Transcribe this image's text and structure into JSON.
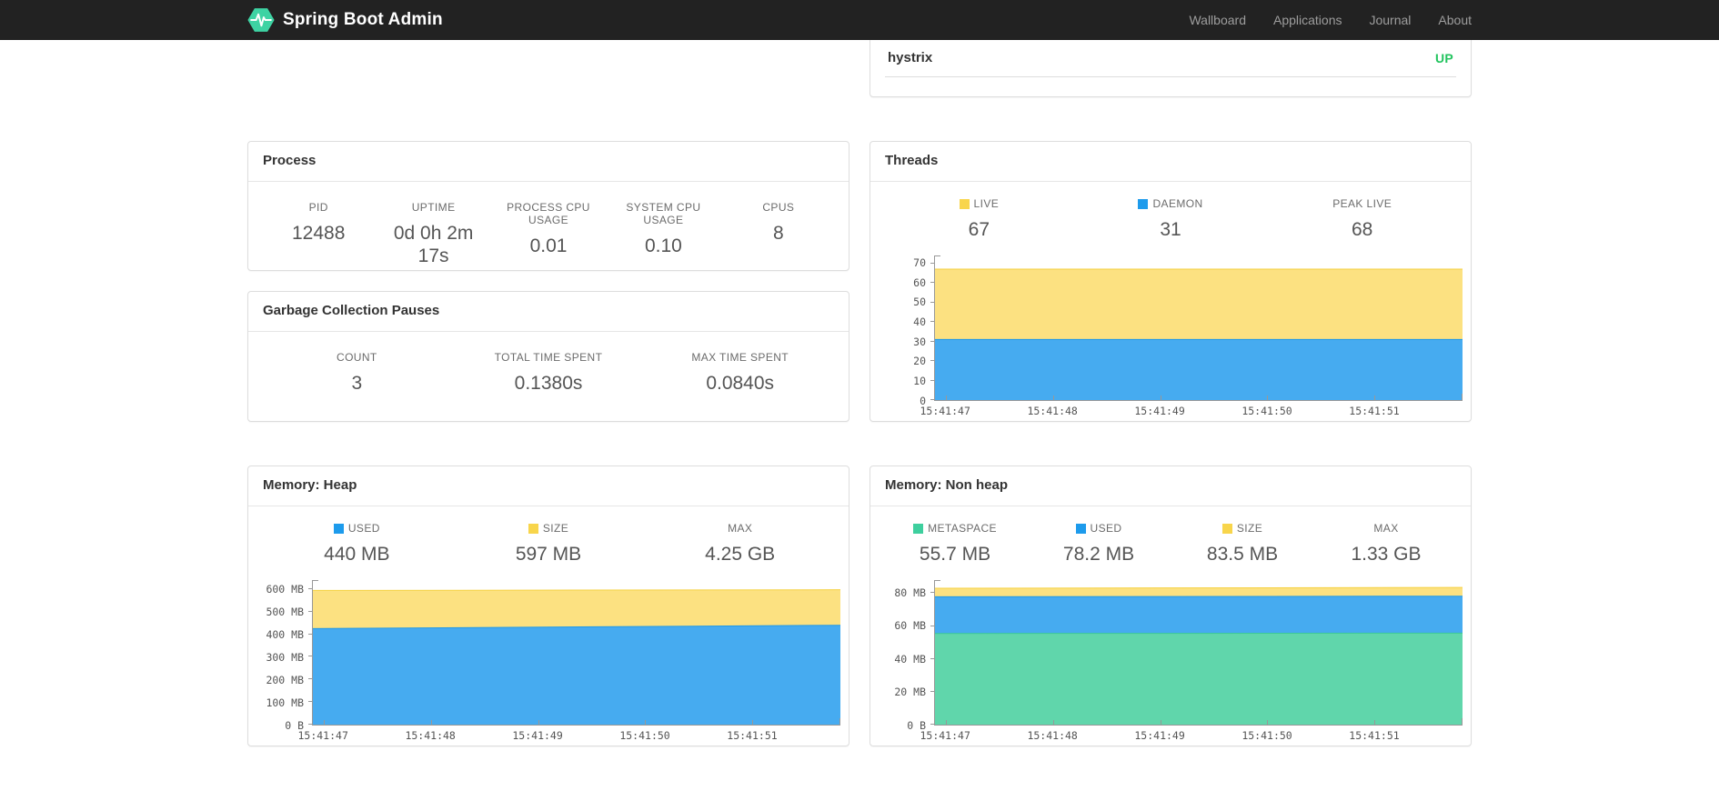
{
  "navbar": {
    "brand": "Spring Boot Admin",
    "links": [
      {
        "label": "Wallboard"
      },
      {
        "label": "Applications"
      },
      {
        "label": "Journal"
      },
      {
        "label": "About"
      }
    ]
  },
  "colors": {
    "brand_green": "#3ed3a3",
    "status_up": "#23c45f",
    "chart_blue": "#1d9bec",
    "chart_yellow": "#f8d54b",
    "chart_green": "#3ecf9e"
  },
  "health": {
    "rows": [
      {
        "name": "hystrix",
        "status": "UP",
        "status_color": "#23c45f"
      }
    ]
  },
  "cards": {
    "process": {
      "title": "Process",
      "stats": [
        {
          "label": "PID",
          "value": "12488"
        },
        {
          "label": "UPTIME",
          "value": "0d 0h 2m 17s"
        },
        {
          "label": "PROCESS CPU USAGE",
          "value": "0.01"
        },
        {
          "label": "SYSTEM CPU USAGE",
          "value": "0.10"
        },
        {
          "label": "CPUS",
          "value": "8"
        }
      ]
    },
    "gc": {
      "title": "Garbage Collection Pauses",
      "stats": [
        {
          "label": "COUNT",
          "value": "3"
        },
        {
          "label": "TOTAL TIME SPENT",
          "value": "0.1380s"
        },
        {
          "label": "MAX TIME SPENT",
          "value": "0.0840s"
        }
      ]
    },
    "threads": {
      "title": "Threads",
      "stats": [
        {
          "label": "LIVE",
          "value": "67",
          "swatch": "#f8d54b"
        },
        {
          "label": "DAEMON",
          "value": "31",
          "swatch": "#1d9bec"
        },
        {
          "label": "PEAK LIVE",
          "value": "68"
        }
      ]
    },
    "heap": {
      "title": "Memory: Heap",
      "stats": [
        {
          "label": "USED",
          "value": "440 MB",
          "swatch": "#1d9bec"
        },
        {
          "label": "SIZE",
          "value": "597 MB",
          "swatch": "#f8d54b"
        },
        {
          "label": "MAX",
          "value": "4.25 GB"
        }
      ]
    },
    "nonheap": {
      "title": "Memory: Non heap",
      "stats": [
        {
          "label": "METASPACE",
          "value": "55.7 MB",
          "swatch": "#3ecf9e"
        },
        {
          "label": "USED",
          "value": "78.2 MB",
          "swatch": "#1d9bec"
        },
        {
          "label": "SIZE",
          "value": "83.5 MB",
          "swatch": "#f8d54b"
        },
        {
          "label": "MAX",
          "value": "1.33 GB"
        }
      ]
    }
  },
  "chart_data": {
    "threads": {
      "type": "area",
      "title": "Threads",
      "ymax": 74,
      "y_ticks": [
        {
          "v": 0,
          "label": "0"
        },
        {
          "v": 10,
          "label": "10"
        },
        {
          "v": 20,
          "label": "20"
        },
        {
          "v": 30,
          "label": "30"
        },
        {
          "v": 40,
          "label": "40"
        },
        {
          "v": 50,
          "label": "50"
        },
        {
          "v": 60,
          "label": "60"
        },
        {
          "v": 70,
          "label": "70"
        }
      ],
      "x_ticks": [
        {
          "pos": 2.1,
          "label": "15:41:47"
        },
        {
          "pos": 22.4,
          "label": "15:41:48"
        },
        {
          "pos": 42.7,
          "label": "15:41:49"
        },
        {
          "pos": 63.0,
          "label": "15:41:50"
        },
        {
          "pos": 83.3,
          "label": "15:41:51"
        }
      ],
      "series": [
        {
          "name": "LIVE",
          "values": [
            67,
            67
          ],
          "area": "#fce181",
          "line": "#f5d141"
        },
        {
          "name": "DAEMON",
          "values": [
            31,
            31
          ],
          "area": "#46abf0",
          "line": "#1e97e8"
        }
      ]
    },
    "heap": {
      "type": "area",
      "title": "Memory: Heap",
      "ymax": 640,
      "y_ticks": [
        {
          "v": 0,
          "label": "0 B"
        },
        {
          "v": 100,
          "label": "100 MB"
        },
        {
          "v": 200,
          "label": "200 MB"
        },
        {
          "v": 300,
          "label": "300 MB"
        },
        {
          "v": 400,
          "label": "400 MB"
        },
        {
          "v": 500,
          "label": "500 MB"
        },
        {
          "v": 600,
          "label": "600 MB"
        }
      ],
      "x_ticks": [
        {
          "pos": 2.1,
          "label": "15:41:47"
        },
        {
          "pos": 22.4,
          "label": "15:41:48"
        },
        {
          "pos": 42.7,
          "label": "15:41:49"
        },
        {
          "pos": 63.0,
          "label": "15:41:50"
        },
        {
          "pos": 83.3,
          "label": "15:41:51"
        }
      ],
      "series": [
        {
          "name": "SIZE",
          "values": [
            594,
            597
          ],
          "area": "#fce181",
          "line": "#f5d141"
        },
        {
          "name": "USED",
          "values": [
            425,
            440
          ],
          "area": "#46abf0",
          "line": "#1e97e8"
        }
      ]
    },
    "nonheap": {
      "type": "area",
      "title": "Memory: Non heap",
      "ymax": 88,
      "y_ticks": [
        {
          "v": 0,
          "label": "0 B"
        },
        {
          "v": 20,
          "label": "20 MB"
        },
        {
          "v": 40,
          "label": "40 MB"
        },
        {
          "v": 60,
          "label": "60 MB"
        },
        {
          "v": 80,
          "label": "80 MB"
        }
      ],
      "x_ticks": [
        {
          "pos": 2.1,
          "label": "15:41:47"
        },
        {
          "pos": 22.4,
          "label": "15:41:48"
        },
        {
          "pos": 42.7,
          "label": "15:41:49"
        },
        {
          "pos": 63.0,
          "label": "15:41:50"
        },
        {
          "pos": 83.3,
          "label": "15:41:51"
        }
      ],
      "series": [
        {
          "name": "SIZE",
          "values": [
            83,
            83.5
          ],
          "area": "#fce181",
          "line": "#f5d141"
        },
        {
          "name": "USED",
          "values": [
            77.8,
            78.2
          ],
          "area": "#46abf0",
          "line": "#1e97e8"
        },
        {
          "name": "METASPACE",
          "values": [
            55.5,
            55.7
          ],
          "area": "#60d6ab",
          "line": "#3cc897"
        }
      ]
    }
  }
}
